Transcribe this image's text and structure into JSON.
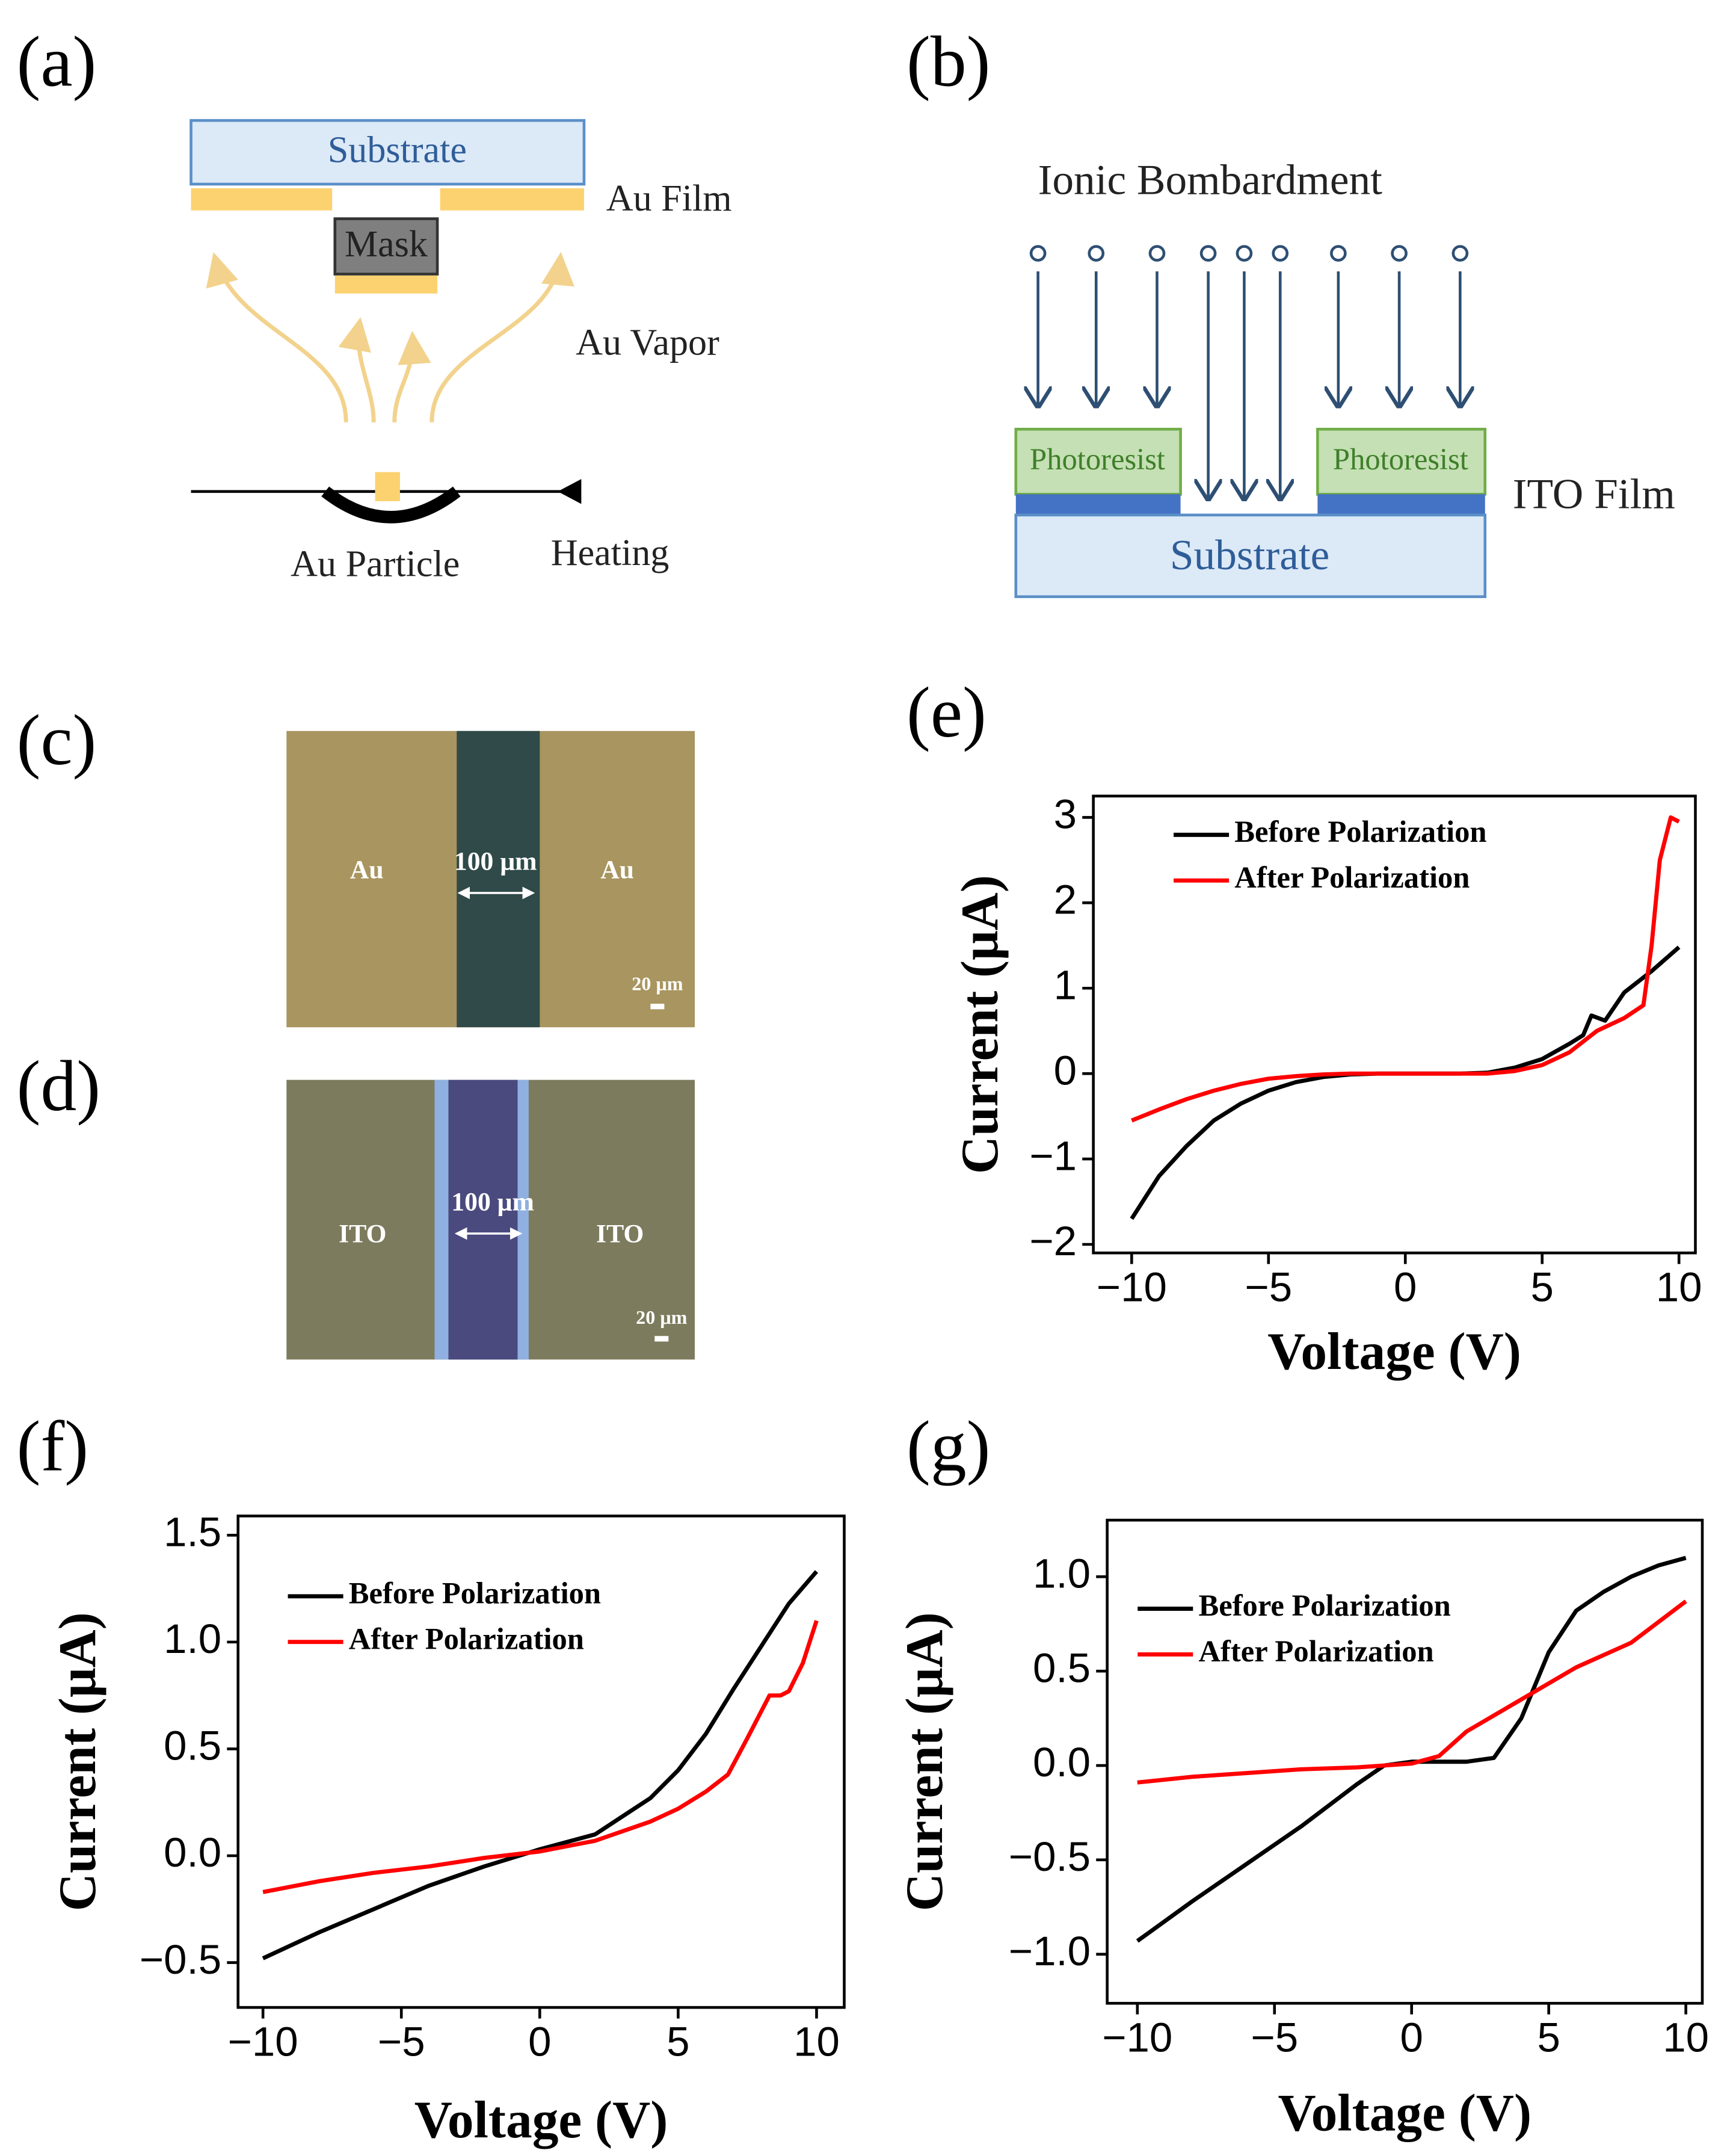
{
  "diagram_a": {
    "label": "(a)",
    "substrate": "Substrate",
    "mask": "Mask",
    "au_film": "Au Film",
    "au_vapor": "Au Vapor",
    "au_particle": "Au Particle",
    "heating": "Heating"
  },
  "diagram_b": {
    "label": "(b)",
    "title": "Ionic Bombardment",
    "photoresist_left": "Photoresist",
    "photoresist_right": "Photoresist",
    "ito_film": "ITO Film",
    "substrate": "Substrate"
  },
  "micrograph_c": {
    "label": "(c)",
    "left": "Au",
    "right": "Au",
    "width": "100 μm",
    "scale": "20 μm"
  },
  "micrograph_d": {
    "label": "(d)",
    "left": "ITO",
    "right": "ITO",
    "width": "100 μm",
    "scale": "20 μm"
  },
  "chart_data": [
    {
      "type": "line",
      "panel": "(e)",
      "x_label": "Voltage (V)",
      "y_label": "Current (μA)",
      "xlim": [
        -11.4,
        10.6
      ],
      "ylim": [
        -2.1,
        3.25
      ],
      "xticks": [
        {
          "value": -10,
          "label": "−10"
        },
        {
          "value": -5,
          "label": "−5"
        },
        0,
        5,
        10
      ],
      "yticks": [
        {
          "value": -2,
          "label": "−2"
        },
        {
          "value": -1,
          "label": "−1"
        },
        0,
        1,
        2,
        3
      ],
      "legend": "upper left",
      "series": [
        {
          "name": "Before Polarization",
          "color": "#000000",
          "x": [
            -10,
            -9,
            -8,
            -7,
            -6,
            -5,
            -4,
            -3,
            -2,
            -1,
            0,
            1,
            2,
            3,
            4,
            5,
            6,
            6.5,
            6.8,
            7.3,
            8,
            9,
            10
          ],
          "values": [
            -1.7,
            -1.2,
            -0.85,
            -0.55,
            -0.35,
            -0.2,
            -0.1,
            -0.04,
            -0.01,
            0,
            0,
            0,
            0,
            0.01,
            0.07,
            0.17,
            0.35,
            0.45,
            0.68,
            0.62,
            0.95,
            1.2,
            1.48
          ]
        },
        {
          "name": "After Polarization",
          "color": "#ff0000",
          "x": [
            -10,
            -9,
            -8,
            -7,
            -6,
            -5,
            -4,
            -3,
            -2,
            -1,
            0,
            1,
            2,
            3,
            4,
            5,
            6,
            7,
            8,
            8.7,
            9,
            9.3,
            9.7,
            10
          ],
          "values": [
            -0.55,
            -0.42,
            -0.3,
            -0.2,
            -0.12,
            -0.06,
            -0.03,
            -0.01,
            0,
            0,
            0,
            0,
            0,
            0,
            0.03,
            0.1,
            0.25,
            0.5,
            0.65,
            0.8,
            1.5,
            2.5,
            3.0,
            2.95
          ]
        }
      ]
    },
    {
      "type": "line",
      "panel": "(f)",
      "x_label": "Voltage (V)",
      "y_label": "Current (μA)",
      "xlim": [
        -10.9,
        11
      ],
      "ylim": [
        -0.71,
        1.59
      ],
      "xticks": [
        {
          "value": -10,
          "label": "−10"
        },
        {
          "value": -5,
          "label": "−5"
        },
        0,
        5,
        10
      ],
      "yticks": [
        {
          "value": -0.5,
          "label": "−0.5"
        },
        {
          "value": 0,
          "label": "0.0"
        },
        0.5,
        {
          "value": 1,
          "label": "1.0"
        },
        1.5
      ],
      "legend": "upper left",
      "series": [
        {
          "name": "Before Polarization",
          "color": "#000000",
          "x": [
            -10,
            -8,
            -6,
            -4,
            -2,
            0,
            2,
            4,
            5,
            6,
            7,
            8,
            9,
            10
          ],
          "values": [
            -0.48,
            -0.36,
            -0.25,
            -0.14,
            -0.05,
            0.03,
            0.1,
            0.27,
            0.4,
            0.57,
            0.78,
            0.98,
            1.18,
            1.33
          ]
        },
        {
          "name": "After Polarization",
          "color": "#ff0000",
          "x": [
            -10,
            -8,
            -6,
            -4,
            -2,
            0,
            2,
            4,
            5,
            6,
            6.8,
            7.5,
            8.3,
            8.7,
            9,
            9.5,
            10
          ],
          "values": [
            -0.17,
            -0.12,
            -0.08,
            -0.05,
            -0.01,
            0.02,
            0.07,
            0.16,
            0.22,
            0.3,
            0.38,
            0.55,
            0.75,
            0.75,
            0.77,
            0.9,
            1.1
          ]
        }
      ]
    },
    {
      "type": "line",
      "panel": "(g)",
      "x_label": "Voltage (V)",
      "y_label": "Current (μA)",
      "xlim": [
        -11.1,
        10.6
      ],
      "ylim": [
        -1.26,
        1.3
      ],
      "xticks": [
        {
          "value": -10,
          "label": "−10"
        },
        {
          "value": -5,
          "label": "−5"
        },
        0,
        5,
        10
      ],
      "yticks": [
        {
          "value": -1,
          "label": "−1.0"
        },
        {
          "value": -0.5,
          "label": "−0.5"
        },
        {
          "value": 0,
          "label": "0.0"
        },
        0.5,
        {
          "value": 1,
          "label": "1.0"
        }
      ],
      "legend": "upper left",
      "series": [
        {
          "name": "Before Polarization",
          "color": "#000000",
          "x": [
            -10,
            -8,
            -6,
            -4,
            -2,
            -1,
            0,
            2,
            3,
            4,
            5,
            6,
            7,
            8,
            9,
            10
          ],
          "values": [
            -0.93,
            -0.72,
            -0.52,
            -0.32,
            -0.1,
            0,
            0.02,
            0.02,
            0.04,
            0.25,
            0.6,
            0.82,
            0.92,
            1.0,
            1.06,
            1.1
          ]
        },
        {
          "name": "After Polarization",
          "color": "#ff0000",
          "x": [
            -10,
            -8,
            -6,
            -4,
            -2,
            0,
            1,
            2,
            4,
            6,
            8,
            10
          ],
          "values": [
            -0.09,
            -0.06,
            -0.04,
            -0.02,
            -0.01,
            0.01,
            0.05,
            0.18,
            0.35,
            0.52,
            0.65,
            0.87
          ]
        }
      ]
    }
  ]
}
